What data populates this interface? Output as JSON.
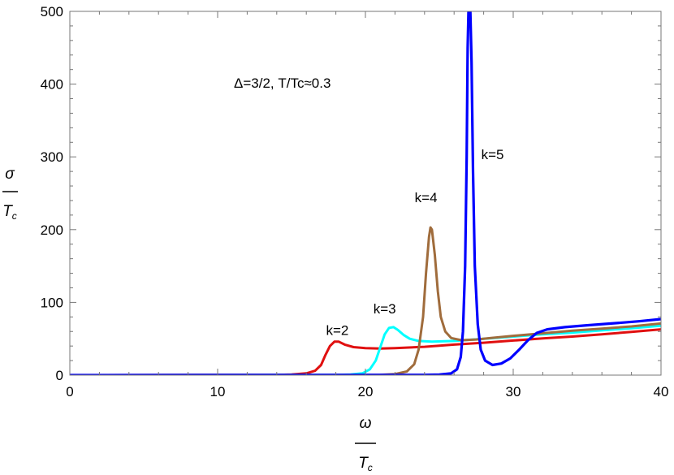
{
  "chart_data": {
    "type": "line",
    "title": "",
    "annotation": "Δ=3/2,  T/Tc≈0.3",
    "xlabel": {
      "numerator": "ω",
      "denominator": "Tc"
    },
    "ylabel": {
      "numerator": "σ",
      "denominator": "Tc"
    },
    "xlim": [
      0,
      40
    ],
    "ylim": [
      0,
      500
    ],
    "xticks": [
      0,
      10,
      20,
      30,
      40
    ],
    "yticks": [
      0,
      100,
      200,
      300,
      400,
      500
    ],
    "grid": false,
    "series": [
      {
        "name": "k=2",
        "color": "#e01010",
        "points": [
          [
            0,
            0
          ],
          [
            14,
            0.3
          ],
          [
            15,
            0.8
          ],
          [
            16,
            2.5
          ],
          [
            16.6,
            6
          ],
          [
            17,
            14
          ],
          [
            17.3,
            28
          ],
          [
            17.6,
            40
          ],
          [
            17.9,
            46
          ],
          [
            18.2,
            46
          ],
          [
            18.6,
            42
          ],
          [
            19.2,
            38.5
          ],
          [
            20,
            37
          ],
          [
            21,
            36.5
          ],
          [
            22,
            37
          ],
          [
            24,
            39
          ],
          [
            26,
            42
          ],
          [
            28,
            44.5
          ],
          [
            30,
            47.5
          ],
          [
            32,
            50.5
          ],
          [
            34,
            53
          ],
          [
            36,
            56
          ],
          [
            38,
            59.5
          ],
          [
            40,
            63
          ]
        ]
      },
      {
        "name": "k=3",
        "color": "#00ffff",
        "points": [
          [
            0,
            0
          ],
          [
            18,
            0.3
          ],
          [
            19,
            0.8
          ],
          [
            19.8,
            2.5
          ],
          [
            20.3,
            8
          ],
          [
            20.7,
            20
          ],
          [
            21,
            38
          ],
          [
            21.3,
            56
          ],
          [
            21.6,
            65
          ],
          [
            21.9,
            66
          ],
          [
            22.2,
            62
          ],
          [
            22.6,
            55
          ],
          [
            23,
            50
          ],
          [
            23.6,
            47
          ],
          [
            24.5,
            46
          ],
          [
            26,
            47
          ],
          [
            28,
            50
          ],
          [
            30,
            53
          ],
          [
            32,
            56
          ],
          [
            34,
            58.5
          ],
          [
            36,
            61.5
          ],
          [
            38,
            64.5
          ],
          [
            40,
            68
          ]
        ]
      },
      {
        "name": "k=4",
        "color": "#a06c3c",
        "points": [
          [
            0,
            0
          ],
          [
            20,
            0.2
          ],
          [
            21,
            0.5
          ],
          [
            22,
            1.5
          ],
          [
            22.8,
            5
          ],
          [
            23.3,
            15
          ],
          [
            23.6,
            35
          ],
          [
            23.9,
            80
          ],
          [
            24.1,
            140
          ],
          [
            24.3,
            190
          ],
          [
            24.4,
            203
          ],
          [
            24.5,
            200
          ],
          [
            24.7,
            165
          ],
          [
            24.9,
            115
          ],
          [
            25.1,
            80
          ],
          [
            25.4,
            60
          ],
          [
            25.8,
            51
          ],
          [
            26.5,
            48
          ],
          [
            27.5,
            49
          ],
          [
            28.5,
            51
          ],
          [
            30,
            54
          ],
          [
            32,
            57.5
          ],
          [
            34,
            61
          ],
          [
            36,
            64
          ],
          [
            38,
            67
          ],
          [
            40,
            71
          ]
        ]
      },
      {
        "name": "k=5",
        "color": "#0000ff",
        "points": [
          [
            0,
            0
          ],
          [
            24,
            0.3
          ],
          [
            25,
            0.8
          ],
          [
            25.8,
            2.5
          ],
          [
            26.2,
            8
          ],
          [
            26.45,
            25
          ],
          [
            26.6,
            60
          ],
          [
            26.75,
            150
          ],
          [
            26.85,
            300
          ],
          [
            26.92,
            450
          ],
          [
            26.97,
            500
          ],
          [
            27.1,
            500
          ],
          [
            27.18,
            430
          ],
          [
            27.28,
            280
          ],
          [
            27.4,
            150
          ],
          [
            27.6,
            70
          ],
          [
            27.8,
            35
          ],
          [
            28.1,
            20
          ],
          [
            28.6,
            14
          ],
          [
            29.2,
            16
          ],
          [
            29.8,
            23
          ],
          [
            30.4,
            35
          ],
          [
            31,
            48
          ],
          [
            31.6,
            58
          ],
          [
            32.3,
            63
          ],
          [
            33.5,
            66
          ],
          [
            35,
            68.5
          ],
          [
            37,
            71.5
          ],
          [
            38.5,
            74
          ],
          [
            40,
            77
          ]
        ]
      }
    ],
    "labels": [
      {
        "text": "k=2",
        "x": 18.1,
        "y": 55
      },
      {
        "text": "k=3",
        "x": 21.3,
        "y": 85
      },
      {
        "text": "k=4",
        "x": 24.1,
        "y": 238
      },
      {
        "text": "k=5",
        "x": 28.6,
        "y": 297
      }
    ]
  }
}
